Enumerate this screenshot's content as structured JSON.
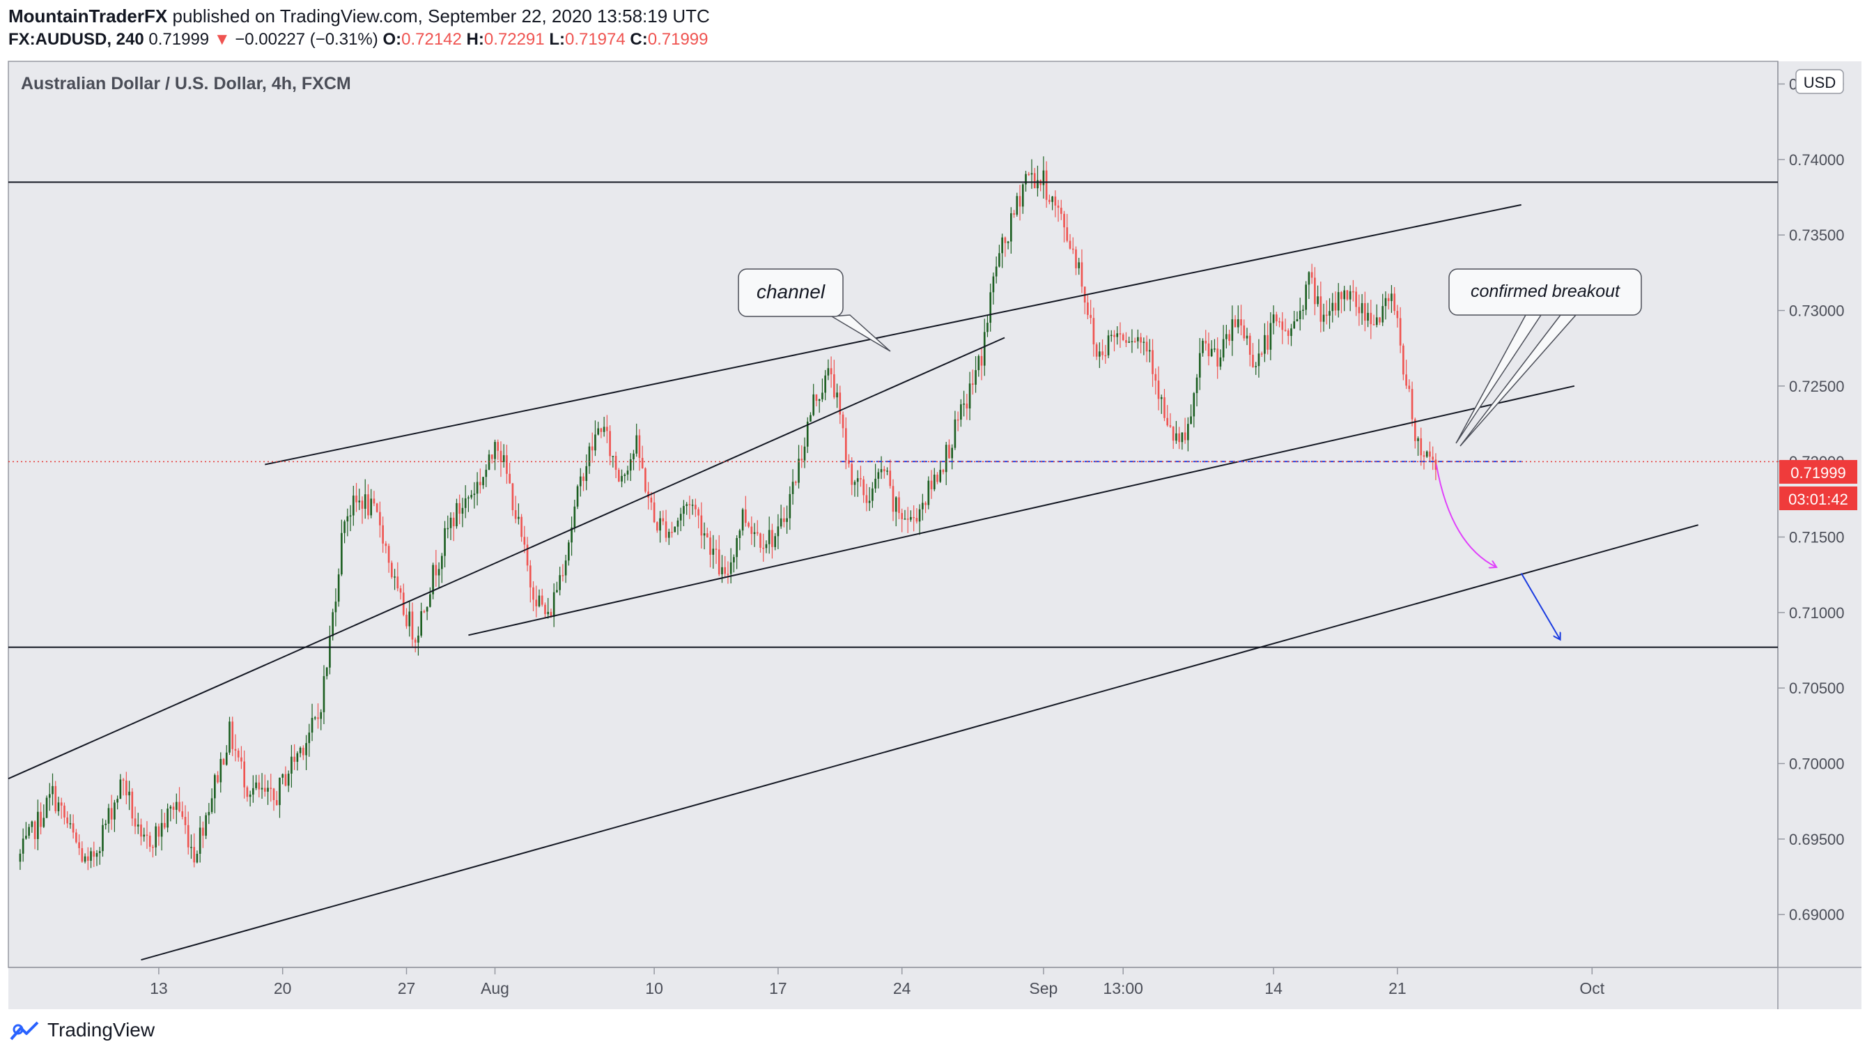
{
  "header": {
    "author": "MountainTraderFX",
    "published": "published on TradingView.com, September 22, 2020 13:58:19 UTC",
    "symbol": "FX:AUDUSD, 240",
    "last": "0.71999",
    "change": "−0.00227 (−0.31%)",
    "o_label": "O:",
    "o": "0.72142",
    "h_label": "H:",
    "h": "0.72291",
    "l_label": "L:",
    "l": "0.71974",
    "c_label": "C:",
    "c": "0.71999"
  },
  "chart_data": {
    "type": "candlestick",
    "title": "Australian Dollar / U.S. Dollar, 4h, FXCM",
    "currency": "USD",
    "x_tick_labels": [
      "13",
      "20",
      "27",
      "Aug",
      "10",
      "17",
      "24",
      "Sep",
      "13:00",
      "14",
      "21",
      "Oct"
    ],
    "x_ticks_day": [
      12,
      19,
      26,
      31,
      40,
      47,
      54,
      62,
      66.5,
      75,
      82,
      93
    ],
    "y_tick_labels": [
      "0.74500",
      "0.74000",
      "0.73500",
      "0.73000",
      "0.72500",
      "0.72000",
      "0.71500",
      "0.71000",
      "0.70500",
      "0.70000",
      "0.69500",
      "0.69000"
    ],
    "y_ticks": [
      0.745,
      0.74,
      0.735,
      0.73,
      0.725,
      0.72,
      0.715,
      0.71,
      0.705,
      0.7,
      0.695,
      0.69
    ],
    "ylim": [
      0.6865,
      0.7465
    ],
    "xlim_day": [
      3.5,
      103.5
    ],
    "current_price": 0.71999,
    "current_price_label": "0.71999",
    "countdown": "03:01:42",
    "colors": {
      "up": "#26a69a",
      "up_dark": "#1b5e20",
      "down": "#ef5350",
      "background": "#e8e9ed"
    },
    "path_anchors": [
      [
        4,
        0.6935
      ],
      [
        6,
        0.698
      ],
      [
        8,
        0.693
      ],
      [
        10,
        0.699
      ],
      [
        11,
        0.6945
      ],
      [
        12,
        0.6955
      ],
      [
        13,
        0.6975
      ],
      [
        14,
        0.694
      ],
      [
        16,
        0.702
      ],
      [
        17,
        0.6985
      ],
      [
        18.5,
        0.6975
      ],
      [
        19.5,
        0.7
      ],
      [
        21,
        0.703
      ],
      [
        21.5,
        0.7065
      ],
      [
        22.5,
        0.7165
      ],
      [
        23.5,
        0.7175
      ],
      [
        24.5,
        0.716
      ],
      [
        25.5,
        0.711
      ],
      [
        26.5,
        0.7085
      ],
      [
        27.5,
        0.7125
      ],
      [
        28.5,
        0.716
      ],
      [
        30,
        0.7185
      ],
      [
        30.8,
        0.72
      ],
      [
        31,
        0.722
      ],
      [
        32,
        0.7175
      ],
      [
        33,
        0.712
      ],
      [
        34,
        0.7095
      ],
      [
        35,
        0.714
      ],
      [
        36,
        0.7195
      ],
      [
        37,
        0.7225
      ],
      [
        38,
        0.719
      ],
      [
        39,
        0.721
      ],
      [
        40,
        0.716
      ],
      [
        41,
        0.7155
      ],
      [
        42,
        0.7175
      ],
      [
        43,
        0.715
      ],
      [
        44,
        0.712
      ],
      [
        45,
        0.7165
      ],
      [
        46,
        0.715
      ],
      [
        47,
        0.715
      ],
      [
        48,
        0.719
      ],
      [
        49,
        0.724
      ],
      [
        50,
        0.726
      ],
      [
        51,
        0.7195
      ],
      [
        52,
        0.7175
      ],
      [
        53,
        0.7195
      ],
      [
        53.5,
        0.717
      ],
      [
        54.5,
        0.716
      ],
      [
        55.5,
        0.718
      ],
      [
        56.5,
        0.7205
      ],
      [
        57.5,
        0.7235
      ],
      [
        58.5,
        0.727
      ],
      [
        59.3,
        0.733
      ],
      [
        60,
        0.735
      ],
      [
        61,
        0.739
      ],
      [
        62,
        0.7385
      ],
      [
        63,
        0.736
      ],
      [
        64,
        0.733
      ],
      [
        65,
        0.727
      ],
      [
        66,
        0.7285
      ],
      [
        67,
        0.7285
      ],
      [
        68,
        0.7275
      ],
      [
        69,
        0.722
      ],
      [
        70,
        0.721
      ],
      [
        71,
        0.7275
      ],
      [
        72,
        0.727
      ],
      [
        73,
        0.7295
      ],
      [
        74,
        0.7265
      ],
      [
        75,
        0.729
      ],
      [
        76,
        0.7285
      ],
      [
        77,
        0.732
      ],
      [
        78,
        0.729
      ],
      [
        79,
        0.7315
      ],
      [
        80,
        0.73
      ],
      [
        81,
        0.7295
      ],
      [
        81.8,
        0.731
      ],
      [
        82.5,
        0.725
      ],
      [
        83.2,
        0.721
      ],
      [
        84.1,
        0.72
      ]
    ],
    "horizontal_levels": [
      0.7385,
      0.7077
    ],
    "dashed_level": 0.72,
    "channel_lines": [
      {
        "from": [
          3.5,
          0.699
        ],
        "to": [
          59.8,
          0.7282
        ]
      },
      {
        "from": [
          18,
          0.7198
        ],
        "to": [
          89,
          0.737
        ]
      },
      {
        "from": [
          29.5,
          0.7085
        ],
        "to": [
          92,
          0.725
        ]
      },
      {
        "from": [
          11,
          0.687
        ],
        "to": [
          99,
          0.7158
        ]
      }
    ],
    "annotations": [
      {
        "text": "channel"
      },
      {
        "text": "confirmed breakout"
      }
    ]
  },
  "footer": {
    "brand": "TradingView"
  }
}
